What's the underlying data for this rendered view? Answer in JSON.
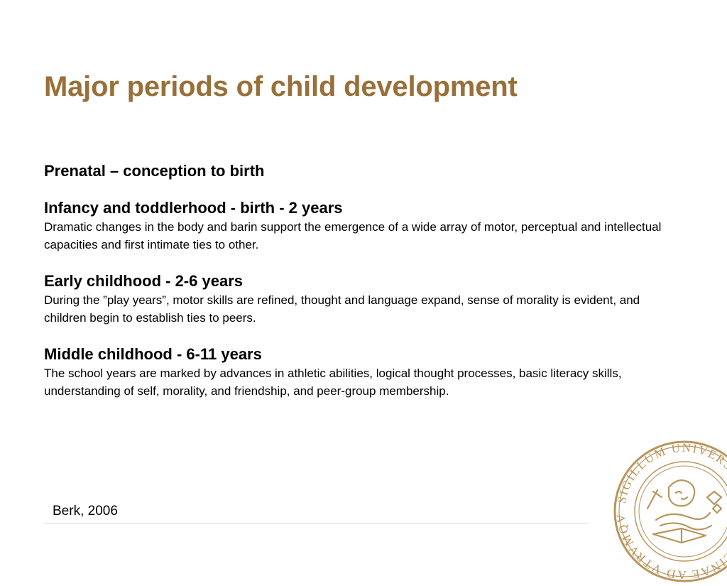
{
  "slide": {
    "title": "Major periods of child development",
    "sections": [
      {
        "heading": "Prenatal – conception to birth",
        "text": ""
      },
      {
        "heading": "Infancy and toddlerhood - birth - 2 years",
        "text": "Dramatic changes in the body and barin support the emergence of a wide array of motor, perceptual and intellectual capacities and first intimate ties to other."
      },
      {
        "heading": "Early childhood - 2-6 years",
        "text": "During the ”play years”, motor skills are refined, thought and language expand, sense of morality is evident, and children begin to establish ties to peers."
      },
      {
        "heading": "Middle childhood - 6-11 years",
        "text": "The school years are marked by advances in athletic abilities, logical thought processes, basic literacy skills, understanding of self, morality, and friendship, and peer-group membership."
      }
    ],
    "citation": "Berk, 2006"
  },
  "seal": {
    "icon": "university-seal-icon",
    "legend": "SIGILLUM UNIVERSITATIS CAROLINAE AD VTRVMQVE",
    "color": "#b8955c"
  },
  "colors": {
    "title": "#99703a",
    "text": "#000000",
    "rule": "#d8d8d8"
  }
}
